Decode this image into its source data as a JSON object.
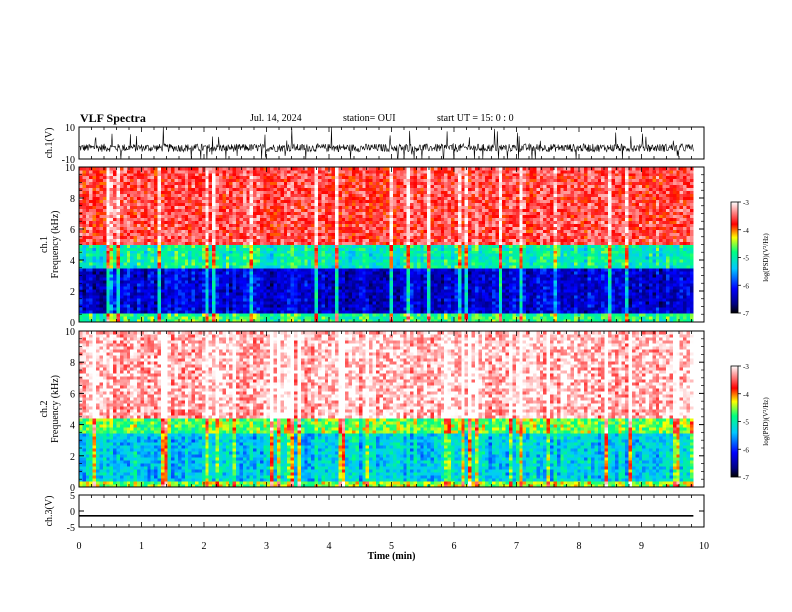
{
  "header": {
    "title": "VLF Spectra",
    "date": "Jul. 14, 2024",
    "station": "station= OUI",
    "start_ut": "start UT =  15: 0  : 0"
  },
  "chart_data": [
    {
      "type": "line",
      "title": "",
      "ylabel": "ch.1(V)",
      "ylim": [
        -10,
        10
      ],
      "ytick_labels": [
        "10",
        "-10"
      ],
      "xlim": [
        0,
        10
      ],
      "data_extent_min": 9.83,
      "description_series": "noisy waveform around -3 V with spikes",
      "baseline": -3,
      "noise_amplitude": 2.5,
      "color": "#000000"
    },
    {
      "type": "heatmap",
      "ylabel_line1": "ch.1",
      "ylabel_line2": "Frequency (kHz)",
      "ylim": [
        0,
        10
      ],
      "ytick_labels": [
        "0",
        "2",
        "4",
        "6",
        "8",
        "10"
      ],
      "xlim": [
        0,
        10
      ],
      "data_extent_min": 9.83,
      "colorbar": {
        "label": "log(PSD)(V²/Hz)",
        "range": [
          -7,
          -3
        ],
        "tick_labels": [
          "-3",
          "-4",
          "-5",
          "-6",
          "-7"
        ]
      },
      "bands": [
        {
          "freq_khz": [
            0,
            0.5
          ],
          "log_psd": -4.8
        },
        {
          "freq_khz": [
            0.5,
            3.5
          ],
          "log_psd": -6.3
        },
        {
          "freq_khz": [
            3.5,
            5.0
          ],
          "log_psd": -5.0
        },
        {
          "freq_khz": [
            5.0,
            10.0
          ],
          "log_psd": -3.6
        }
      ]
    },
    {
      "type": "heatmap",
      "ylabel_line1": "ch.2",
      "ylabel_line2": "Frequency (kHz)",
      "ylim": [
        0,
        10
      ],
      "ytick_labels": [
        "0",
        "2",
        "4",
        "6",
        "8",
        "10"
      ],
      "xlim": [
        0,
        10
      ],
      "data_extent_min": 9.83,
      "colorbar": {
        "label": "log(PSD)(V²/Hz)",
        "range": [
          -7,
          -3
        ],
        "tick_labels": [
          "-3",
          "-4",
          "-5",
          "-6",
          "-7"
        ]
      },
      "bands": [
        {
          "freq_khz": [
            0,
            0.3
          ],
          "log_psd": -4.5
        },
        {
          "freq_khz": [
            0.3,
            3.5
          ],
          "log_psd": -5.3
        },
        {
          "freq_khz": [
            3.5,
            4.5
          ],
          "log_psd": -4.6
        },
        {
          "freq_khz": [
            4.5,
            10.0
          ],
          "log_psd": -3.2
        }
      ]
    },
    {
      "type": "line",
      "ylabel": "ch.3(V)",
      "ylim": [
        -5,
        5
      ],
      "ytick_labels": [
        "5",
        "0",
        "-5"
      ],
      "xlim": [
        0,
        10
      ],
      "data_extent_min": 9.83,
      "values_constant": -1.5,
      "color": "#000000"
    }
  ],
  "xaxis": {
    "label": "Time (min)",
    "range": [
      0,
      10
    ],
    "tick_labels": [
      "0",
      "1",
      "2",
      "3",
      "4",
      "5",
      "6",
      "7",
      "8",
      "9",
      "10"
    ]
  },
  "colormap": [
    "#000000",
    "#0000ff",
    "#00c8ff",
    "#00ff80",
    "#ffff00",
    "#ff0000",
    "#ffffff"
  ]
}
